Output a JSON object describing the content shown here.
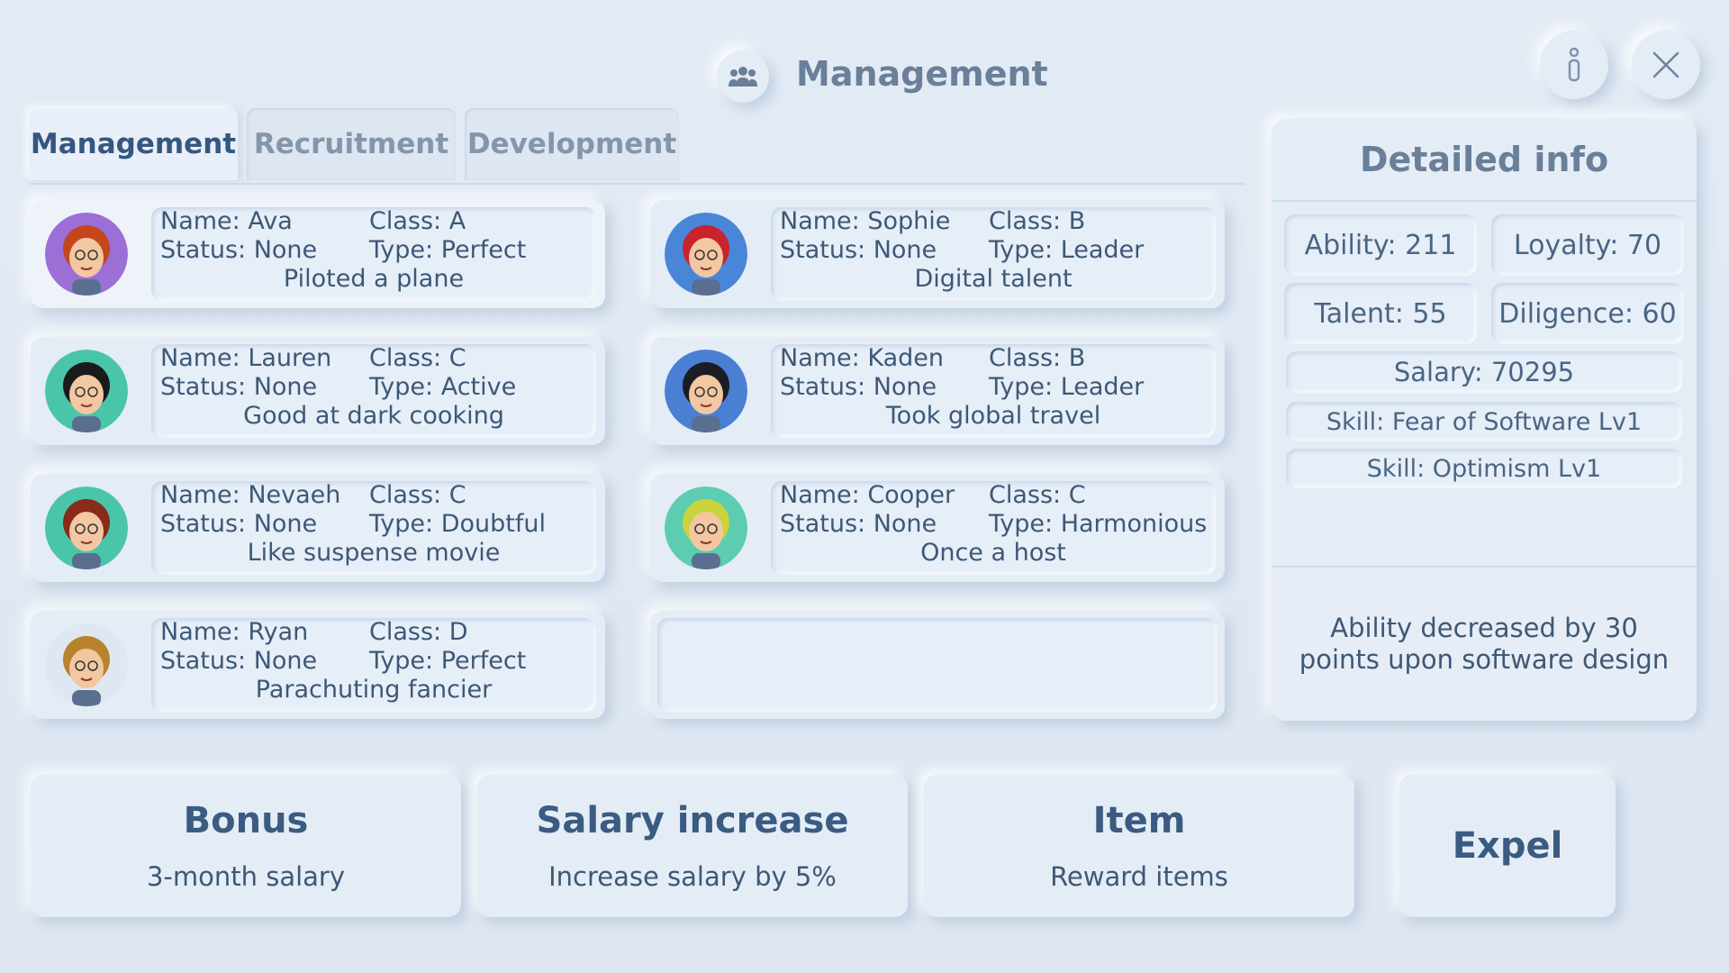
{
  "header": {
    "title": "Management",
    "title_icon": "people-group-icon",
    "info_button_icon": "info-icon",
    "close_button_icon": "close-icon"
  },
  "tabs": [
    {
      "label": "Management",
      "active": true
    },
    {
      "label": "Recruitment",
      "active": false
    },
    {
      "label": "Development",
      "active": false
    }
  ],
  "employees": [
    {
      "name": "Name: Ava",
      "class": "Class: A",
      "status": "Status: None",
      "type": "Type: Perfect",
      "desc": "Piloted a plane",
      "avatar_bg": "#9b6fd6",
      "hair": "#c4471c",
      "selected": true
    },
    {
      "name": "Name: Sophie",
      "class": "Class: B",
      "status": "Status: None",
      "type": "Type: Leader",
      "desc": "Digital talent",
      "avatar_bg": "#4a86d8",
      "hair": "#c8242c",
      "selected": false
    },
    {
      "name": "Name: Lauren",
      "class": "Class: C",
      "status": "Status: None",
      "type": "Type: Active",
      "desc": "Good at dark cooking",
      "avatar_bg": "#49c6a9",
      "hair": "#1a1a1a",
      "selected": false
    },
    {
      "name": "Name: Kaden",
      "class": "Class: B",
      "status": "Status: None",
      "type": "Type: Leader",
      "desc": "Took global travel",
      "avatar_bg": "#4a7fd3",
      "hair": "#1c1c24",
      "selected": false
    },
    {
      "name": "Name: Nevaeh",
      "class": "Class: C",
      "status": "Status: None",
      "type": "Type: Doubtful",
      "desc": "Like suspense movie",
      "avatar_bg": "#49c6a9",
      "hair": "#8a2a1a",
      "selected": false
    },
    {
      "name": "Name: Cooper",
      "class": "Class: C",
      "status": "Status: None",
      "type": "Type: Harmonious",
      "desc": "Once a host",
      "avatar_bg": "#5ccdb0",
      "hair": "#c8d43a",
      "selected": false
    },
    {
      "name": "Name: Ryan",
      "class": "Class: D",
      "status": "Status: None",
      "type": "Type: Perfect",
      "desc": "Parachuting fancier",
      "avatar_bg": "#dfe7f2",
      "hair": "#b8832c",
      "selected": false
    }
  ],
  "detail": {
    "title": "Detailed info",
    "ability": "Ability: 211",
    "loyalty": "Loyalty: 70",
    "talent": "Talent: 55",
    "diligence": "Diligence: 60",
    "salary": "Salary: 70295",
    "skills": [
      "Skill: Fear of Software  Lv1",
      "Skill: Optimism  Lv1"
    ],
    "description": "Ability decreased by 30 points upon software design"
  },
  "actions": [
    {
      "title": "Bonus",
      "subtitle": "3-month salary"
    },
    {
      "title": "Salary increase",
      "subtitle": "Increase salary by 5%"
    },
    {
      "title": "Item",
      "subtitle": "Reward items"
    },
    {
      "title": "Expel",
      "subtitle": ""
    }
  ]
}
